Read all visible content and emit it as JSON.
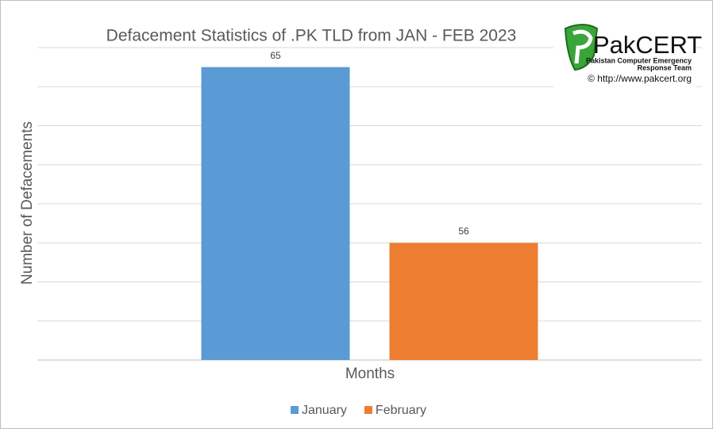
{
  "chart_data": {
    "type": "bar",
    "title": "Defacement Statistics of .PK TLD from JAN - FEB 2023",
    "xlabel": "Months",
    "ylabel": "Number of Defacements",
    "categories": [
      null
    ],
    "series": [
      {
        "name": "January",
        "color": "#5b9bd5",
        "values": [
          65
        ]
      },
      {
        "name": "February",
        "color": "#ed7d31",
        "values": [
          56
        ]
      }
    ],
    "ylim": [
      50,
      66
    ],
    "yticks": [
      50,
      52,
      54,
      56,
      58,
      60,
      62,
      64,
      66
    ],
    "grid": true,
    "legend": "bottom"
  },
  "logo": {
    "name": "PakCERT",
    "line1": "Pakistan Computer Emergency",
    "line2": "Response Team",
    "copyright": "© http://www.pakcert.org"
  }
}
